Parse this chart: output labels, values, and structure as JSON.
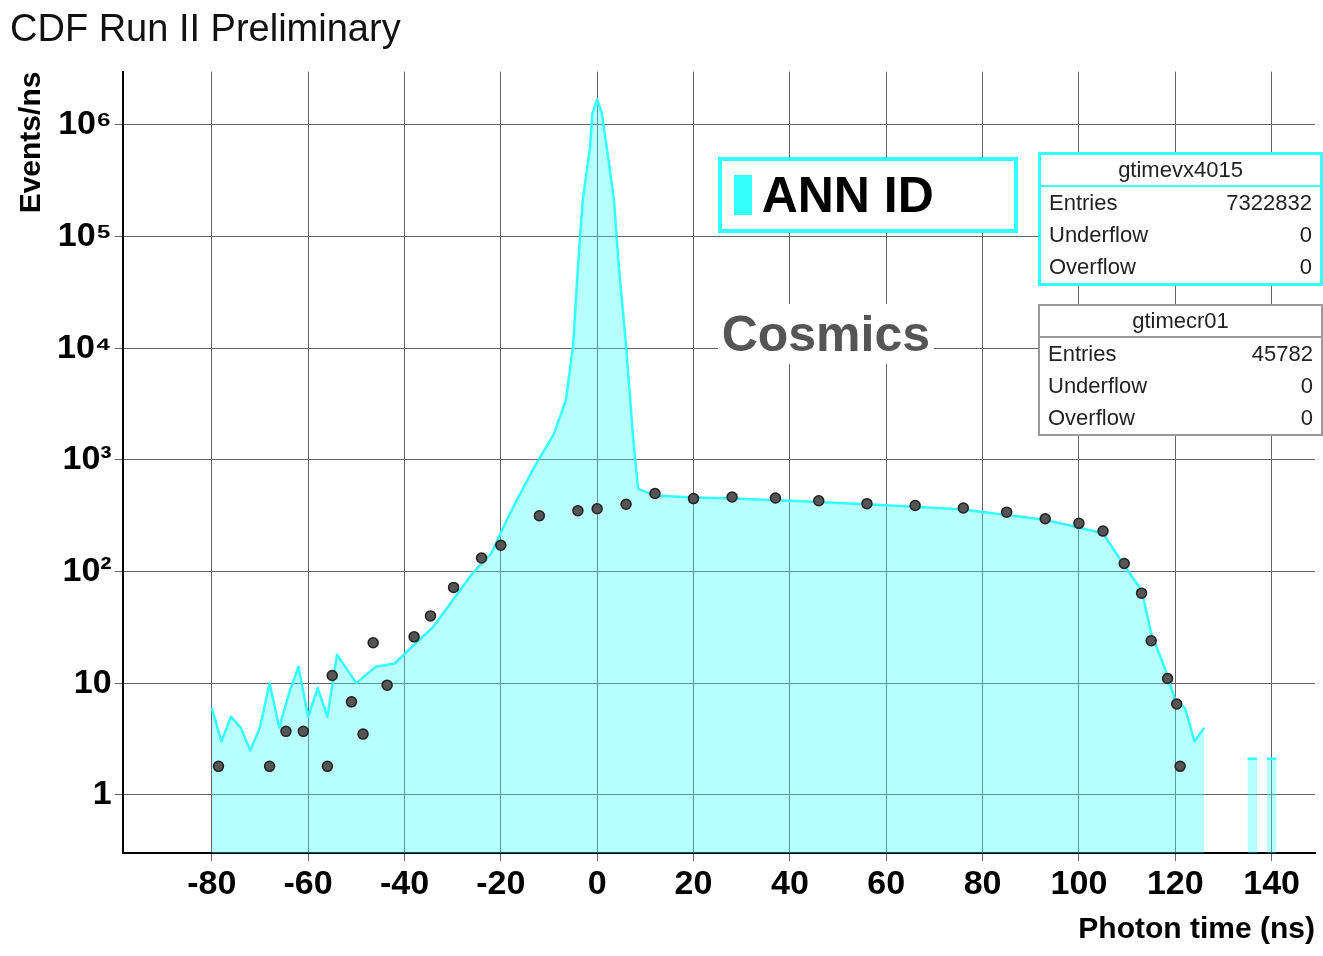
{
  "chart_data": {
    "type": "scatter",
    "title": "CDF Run II Preliminary",
    "xlabel": "Photon time (ns)",
    "ylabel": "Events/ns",
    "log": "y",
    "grid": true,
    "legend": "top right",
    "xlim": [
      -98.5,
      149
    ],
    "xticks": [
      -80,
      -60,
      -40,
      -20,
      0,
      20,
      40,
      60,
      80,
      100,
      120,
      140
    ],
    "ylim": [
      0.32,
      3000000
    ],
    "yticks": [
      1,
      10,
      {
        "value": 100,
        "label": "10²"
      },
      {
        "value": 1000,
        "label": "10³"
      },
      {
        "value": 10000,
        "label": "10⁴"
      },
      {
        "value": 100000,
        "label": "10⁵"
      },
      {
        "value": 1000000,
        "label": "10⁶"
      }
    ],
    "annotations": [
      "gtimevx4015",
      "Entries",
      "7322832",
      "Underflow",
      "0",
      "Overflow",
      "0",
      "gtimecr01",
      "Entries",
      "45782",
      "Underflow",
      "0",
      "Overflow",
      "0"
    ],
    "series": [
      {
        "name": "ANN ID",
        "type": "area",
        "color": "#33ffff",
        "x": [
          -80,
          -78,
          -76,
          -74,
          -72,
          -70,
          -68,
          -66,
          -64,
          -62,
          -60,
          -58,
          -56,
          -54,
          -50,
          -46,
          -42,
          -38,
          -34,
          -30,
          -26,
          -22,
          -19,
          -17,
          -13,
          -9,
          -6.5,
          -5,
          -4,
          -3,
          -1.5,
          -1,
          0,
          1,
          2,
          3.5,
          4.5,
          6,
          7.5,
          8.5,
          12,
          20,
          28,
          40,
          56,
          76,
          93,
          105,
          109,
          113,
          115,
          118,
          120,
          122,
          124,
          126,
          128,
          135,
          137,
          138,
          139,
          141
        ],
        "values": [
          6,
          3,
          5,
          4,
          2.5,
          4,
          10,
          4,
          8,
          14,
          5,
          9,
          5,
          18,
          10,
          14,
          15,
          22,
          32,
          55,
          95,
          145,
          275,
          410,
          870,
          1700,
          3400,
          10500,
          53000,
          210000,
          620000,
          1250000,
          1700000,
          1250000,
          620000,
          210000,
          53000,
          10500,
          1500,
          550,
          480,
          460,
          450,
          430,
          400,
          360,
          290,
          220,
          120,
          68,
          28,
          13,
          7,
          6,
          3,
          4,
          null,
          2.1,
          2.1,
          null,
          2.1,
          2.1
        ]
      },
      {
        "name": "Cosmics",
        "color": "#555555",
        "marker": "circle",
        "x": [
          -78.6,
          -68,
          -64.6,
          -61,
          -56,
          -55,
          -51,
          -48.6,
          -46.5,
          -43.6,
          -38,
          -34.6,
          -29.8,
          -24,
          -20,
          -12,
          -4,
          0,
          6,
          12,
          20,
          28,
          37,
          46,
          56,
          66,
          76,
          85,
          93,
          100,
          105,
          109.4,
          113,
          115,
          118.4,
          120.3,
          121
        ],
        "values": [
          1.8,
          1.8,
          3.7,
          3.7,
          1.8,
          11.7,
          6.8,
          3.5,
          23,
          9.6,
          26,
          40,
          72,
          132,
          172,
          316,
          350,
          365,
          400,
          500,
          450,
          465,
          455,
          430,
          405,
          390,
          370,
          340,
          297,
          270,
          230,
          118,
          64,
          24,
          11,
          6.5,
          1.8
        ]
      }
    ]
  }
}
